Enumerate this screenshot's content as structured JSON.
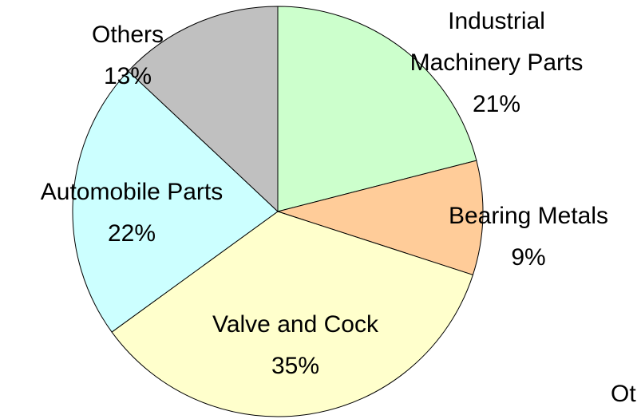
{
  "chart_data": {
    "type": "pie",
    "categories": [
      "Industrial\nMachinery Parts",
      "Bearing Metals",
      "Valve and Cock",
      "Automobile Parts",
      "Others"
    ],
    "values": [
      21,
      9,
      35,
      22,
      13
    ],
    "value_labels": [
      "21%",
      "9%",
      "35%",
      "22%",
      "13%"
    ],
    "colors": [
      "#ccffcc",
      "#ffcc99",
      "#ffffcc",
      "#ccffff",
      "#c0c0c0"
    ],
    "annotations": [
      "Ot"
    ]
  }
}
